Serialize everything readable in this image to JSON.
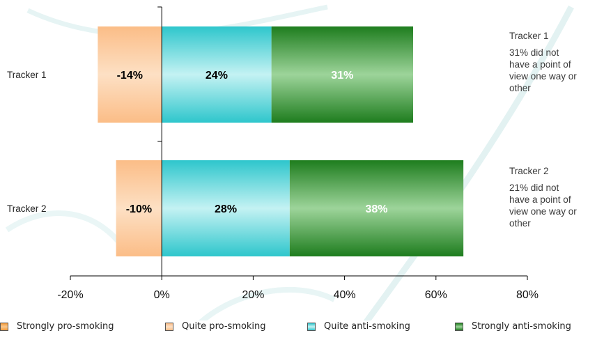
{
  "chart_data": {
    "type": "bar",
    "orientation": "horizontal",
    "stacked": true,
    "categories": [
      "Tracker 1",
      "Tracker 2"
    ],
    "series": [
      {
        "name": "Strongly pro-smoking",
        "values": [
          0,
          0
        ],
        "labels": [
          "",
          ""
        ],
        "color": "#f5a84a"
      },
      {
        "name": "Quite pro-smoking",
        "values": [
          -14,
          -10
        ],
        "labels": [
          "-14%",
          "-10%"
        ],
        "color": "#fcc89a"
      },
      {
        "name": "Quite anti-smoking",
        "values": [
          24,
          28
        ],
        "labels": [
          "24%",
          "28%"
        ],
        "color": "#40c8cc"
      },
      {
        "name": "Strongly anti-smoking",
        "values": [
          31,
          38
        ],
        "labels": [
          "31%",
          "38%"
        ],
        "color": "#2e8b2e"
      }
    ],
    "xlim": [
      -20,
      80
    ],
    "xticks": [
      -20,
      0,
      20,
      40,
      60,
      80
    ],
    "xtick_labels": [
      "-20%",
      "0%",
      "20%",
      "40%",
      "60%",
      "80%"
    ],
    "legend_position": "bottom",
    "grid": false
  },
  "notes": [
    {
      "title": "Tracker 1",
      "lines": [
        "31% did not",
        "have a point of",
        "view one way or",
        "other"
      ]
    },
    {
      "title": "Tracker 2",
      "lines": [
        "21% did not",
        "have a point of",
        "view one way or",
        "other"
      ]
    }
  ]
}
